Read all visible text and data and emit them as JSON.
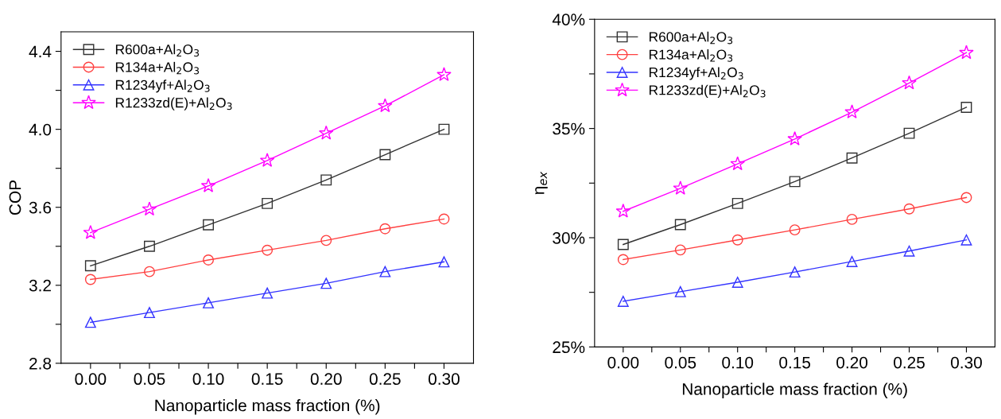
{
  "chart_data": [
    {
      "type": "line",
      "xlabel": "Nanoparticle mass fraction (%)",
      "ylabel": "COP",
      "x": [
        0.0,
        0.05,
        0.1,
        0.15,
        0.2,
        0.25,
        0.3
      ],
      "xlim": [
        -0.025,
        0.325
      ],
      "xticks": [
        {
          "value": 0.0,
          "label": "0.00"
        },
        {
          "value": 0.025,
          "label": null
        },
        {
          "value": 0.05,
          "label": "0.05"
        },
        {
          "value": 0.075,
          "label": null
        },
        {
          "value": 0.1,
          "label": "0.10"
        },
        {
          "value": 0.125,
          "label": null
        },
        {
          "value": 0.15,
          "label": "0.15"
        },
        {
          "value": 0.175,
          "label": null
        },
        {
          "value": 0.2,
          "label": "0.20"
        },
        {
          "value": 0.225,
          "label": null
        },
        {
          "value": 0.25,
          "label": "0.25"
        },
        {
          "value": 0.275,
          "label": null
        },
        {
          "value": 0.3,
          "label": "0.30"
        }
      ],
      "ylim": [
        2.8,
        4.5
      ],
      "yticks": [
        2.8,
        {
          "value": 3.0,
          "label": null
        },
        3.2,
        {
          "value": 3.4,
          "label": null
        },
        3.6,
        {
          "value": 3.8,
          "label": null
        },
        {
          "value": 4.0,
          "label": "4.0"
        },
        {
          "value": 4.2,
          "label": null
        },
        4.4
      ],
      "legend": "top left",
      "grid": false,
      "line_style": "solid",
      "series": [
        {
          "name": "R600a+Al$_{2}$O$_{3}$",
          "color": "#333333",
          "marker": "square",
          "values": [
            3.3,
            3.4,
            3.51,
            3.62,
            3.74,
            3.87,
            4.0
          ]
        },
        {
          "name": "R134a+Al$_{2}$O$_{3}$",
          "color": "#ff4040",
          "marker": "circle",
          "values": [
            3.23,
            3.27,
            3.33,
            3.38,
            3.43,
            3.49,
            3.54
          ]
        },
        {
          "name": "R1234yf+Al$_{2}$O$_{3}$",
          "color": "#3333ff",
          "marker": "triangle",
          "values": [
            3.01,
            3.06,
            3.11,
            3.16,
            3.21,
            3.27,
            3.32
          ]
        },
        {
          "name": "R1233zd(E)+Al$_{2}$O$_{3}$",
          "color": "#ff00ff",
          "marker": "star",
          "values": [
            3.47,
            3.59,
            3.71,
            3.84,
            3.98,
            4.12,
            4.28
          ]
        }
      ]
    },
    {
      "type": "line",
      "xlabel": "Nanoparticle mass fraction (%)",
      "ylabel": "η$_{ex}$",
      "x": [
        0.0,
        0.05,
        0.1,
        0.15,
        0.2,
        0.25,
        0.3
      ],
      "xlim": [
        -0.025,
        0.325
      ],
      "xticks": [
        {
          "value": 0.0,
          "label": "0.00"
        },
        {
          "value": 0.025,
          "label": null
        },
        {
          "value": 0.05,
          "label": "0.05"
        },
        {
          "value": 0.075,
          "label": null
        },
        {
          "value": 0.1,
          "label": "0.10"
        },
        {
          "value": 0.125,
          "label": null
        },
        {
          "value": 0.15,
          "label": "0.15"
        },
        {
          "value": 0.175,
          "label": null
        },
        {
          "value": 0.2,
          "label": "0.20"
        },
        {
          "value": 0.225,
          "label": null
        },
        {
          "value": 0.25,
          "label": "0.25"
        },
        {
          "value": 0.275,
          "label": null
        },
        {
          "value": 0.3,
          "label": "0.30"
        }
      ],
      "ylim": [
        25,
        40
      ],
      "yticks": [
        {
          "value": 25,
          "label": "25%"
        },
        {
          "value": 27.5,
          "label": null
        },
        {
          "value": 30,
          "label": "30%"
        },
        {
          "value": 32.5,
          "label": null
        },
        {
          "value": 35,
          "label": "35%"
        },
        {
          "value": 37.5,
          "label": null
        },
        {
          "value": 40,
          "label": "40%"
        }
      ],
      "legend": "top left",
      "grid": false,
      "line_style": "solid",
      "series": [
        {
          "name": "R600a+Al$_{2}$O$_{3}$",
          "color": "#333333",
          "marker": "square",
          "values": [
            29.69,
            30.6,
            31.57,
            32.57,
            33.65,
            34.78,
            35.97
          ]
        },
        {
          "name": "R134a+Al$_{2}$O$_{3}$",
          "color": "#ff4040",
          "marker": "circle",
          "values": [
            29.0,
            29.44,
            29.9,
            30.36,
            30.84,
            31.32,
            31.84
          ]
        },
        {
          "name": "R1234yf+Al$_{2}$O$_{3}$",
          "color": "#3333ff",
          "marker": "triangle",
          "values": [
            27.09,
            27.53,
            27.96,
            28.43,
            28.91,
            29.39,
            29.9
          ]
        },
        {
          "name": "R1233zd(E)+Al$_{2}$O$_{3}$",
          "color": "#ff00ff",
          "marker": "star",
          "values": [
            31.21,
            32.26,
            33.38,
            34.52,
            35.75,
            37.08,
            38.47
          ]
        }
      ]
    }
  ]
}
